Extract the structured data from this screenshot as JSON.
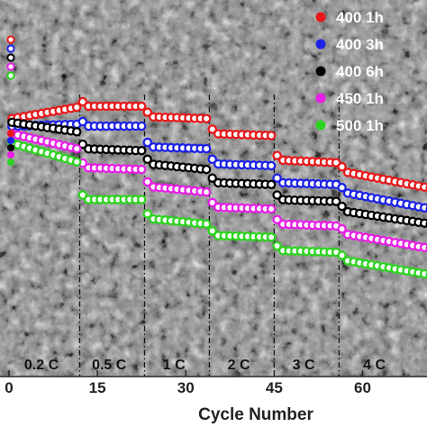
{
  "chart_data": {
    "type": "scatter",
    "title": "",
    "xlabel": "Cycle Number",
    "ylabel": "",
    "xlim": [
      0,
      72
    ],
    "ylim": [
      0,
      100
    ],
    "x_ticks": [
      0,
      15,
      30,
      45,
      60
    ],
    "x_tick_labels": [
      "0",
      "15",
      "30",
      "45",
      "60"
    ],
    "grid": false,
    "legend_position": "top-right",
    "background": "SEM micrograph texture",
    "rate_boundaries": [
      12,
      23,
      34,
      45,
      56
    ],
    "rate_labels": [
      {
        "label": "0.2 C",
        "x": 5.5
      },
      {
        "label": "0.5 C",
        "x": 17
      },
      {
        "label": "1 C",
        "x": 28
      },
      {
        "label": "2 C",
        "x": 39
      },
      {
        "label": "3 C",
        "x": 50
      },
      {
        "label": "4 C",
        "x": 62
      }
    ],
    "series": [
      {
        "name": "400 1h",
        "color": "#e8191b",
        "segments": [
          [
            0,
            12,
            68.5,
            71.5
          ],
          [
            12,
            23,
            71.8,
            71.8
          ],
          [
            23,
            34,
            69.0,
            68.5
          ],
          [
            34,
            45,
            64.5,
            64.0
          ],
          [
            45,
            56,
            57.5,
            56.8
          ],
          [
            56,
            72,
            54.5,
            50.0
          ]
        ]
      },
      {
        "name": "400 3h",
        "color": "#1c22e6",
        "segments": [
          [
            0,
            12,
            66.5,
            67.0
          ],
          [
            12,
            23,
            66.5,
            66.5
          ],
          [
            23,
            34,
            61.0,
            60.5
          ],
          [
            34,
            45,
            56.5,
            56.0
          ],
          [
            45,
            56,
            51.5,
            51.0
          ],
          [
            56,
            72,
            49.0,
            44.5
          ]
        ]
      },
      {
        "name": "400 6h",
        "color": "#000000",
        "segments": [
          [
            0,
            12,
            67.5,
            65.0
          ],
          [
            12,
            23,
            60.5,
            60.0
          ],
          [
            23,
            34,
            56.5,
            55.0
          ],
          [
            34,
            45,
            51.5,
            51.0
          ],
          [
            45,
            56,
            47.0,
            46.5
          ],
          [
            56,
            72,
            44.0,
            40.5
          ]
        ]
      },
      {
        "name": "450 1h",
        "color": "#e81ee6",
        "segments": [
          [
            0,
            12,
            64.5,
            60.5
          ],
          [
            12,
            23,
            55.5,
            55.0
          ],
          [
            23,
            34,
            50.5,
            49.0
          ],
          [
            34,
            45,
            45.0,
            44.5
          ],
          [
            45,
            56,
            40.5,
            40.0
          ],
          [
            56,
            72,
            38.0,
            34.0
          ]
        ]
      },
      {
        "name": "500 1h",
        "color": "#2bd41e",
        "segments": [
          [
            0,
            12,
            62.0,
            57.0
          ],
          [
            12,
            23,
            47.0,
            47.0
          ],
          [
            23,
            34,
            42.0,
            40.5
          ],
          [
            34,
            45,
            37.5,
            37.0
          ],
          [
            45,
            56,
            33.5,
            33.0
          ],
          [
            56,
            72,
            31.0,
            27.0
          ]
        ]
      }
    ]
  }
}
